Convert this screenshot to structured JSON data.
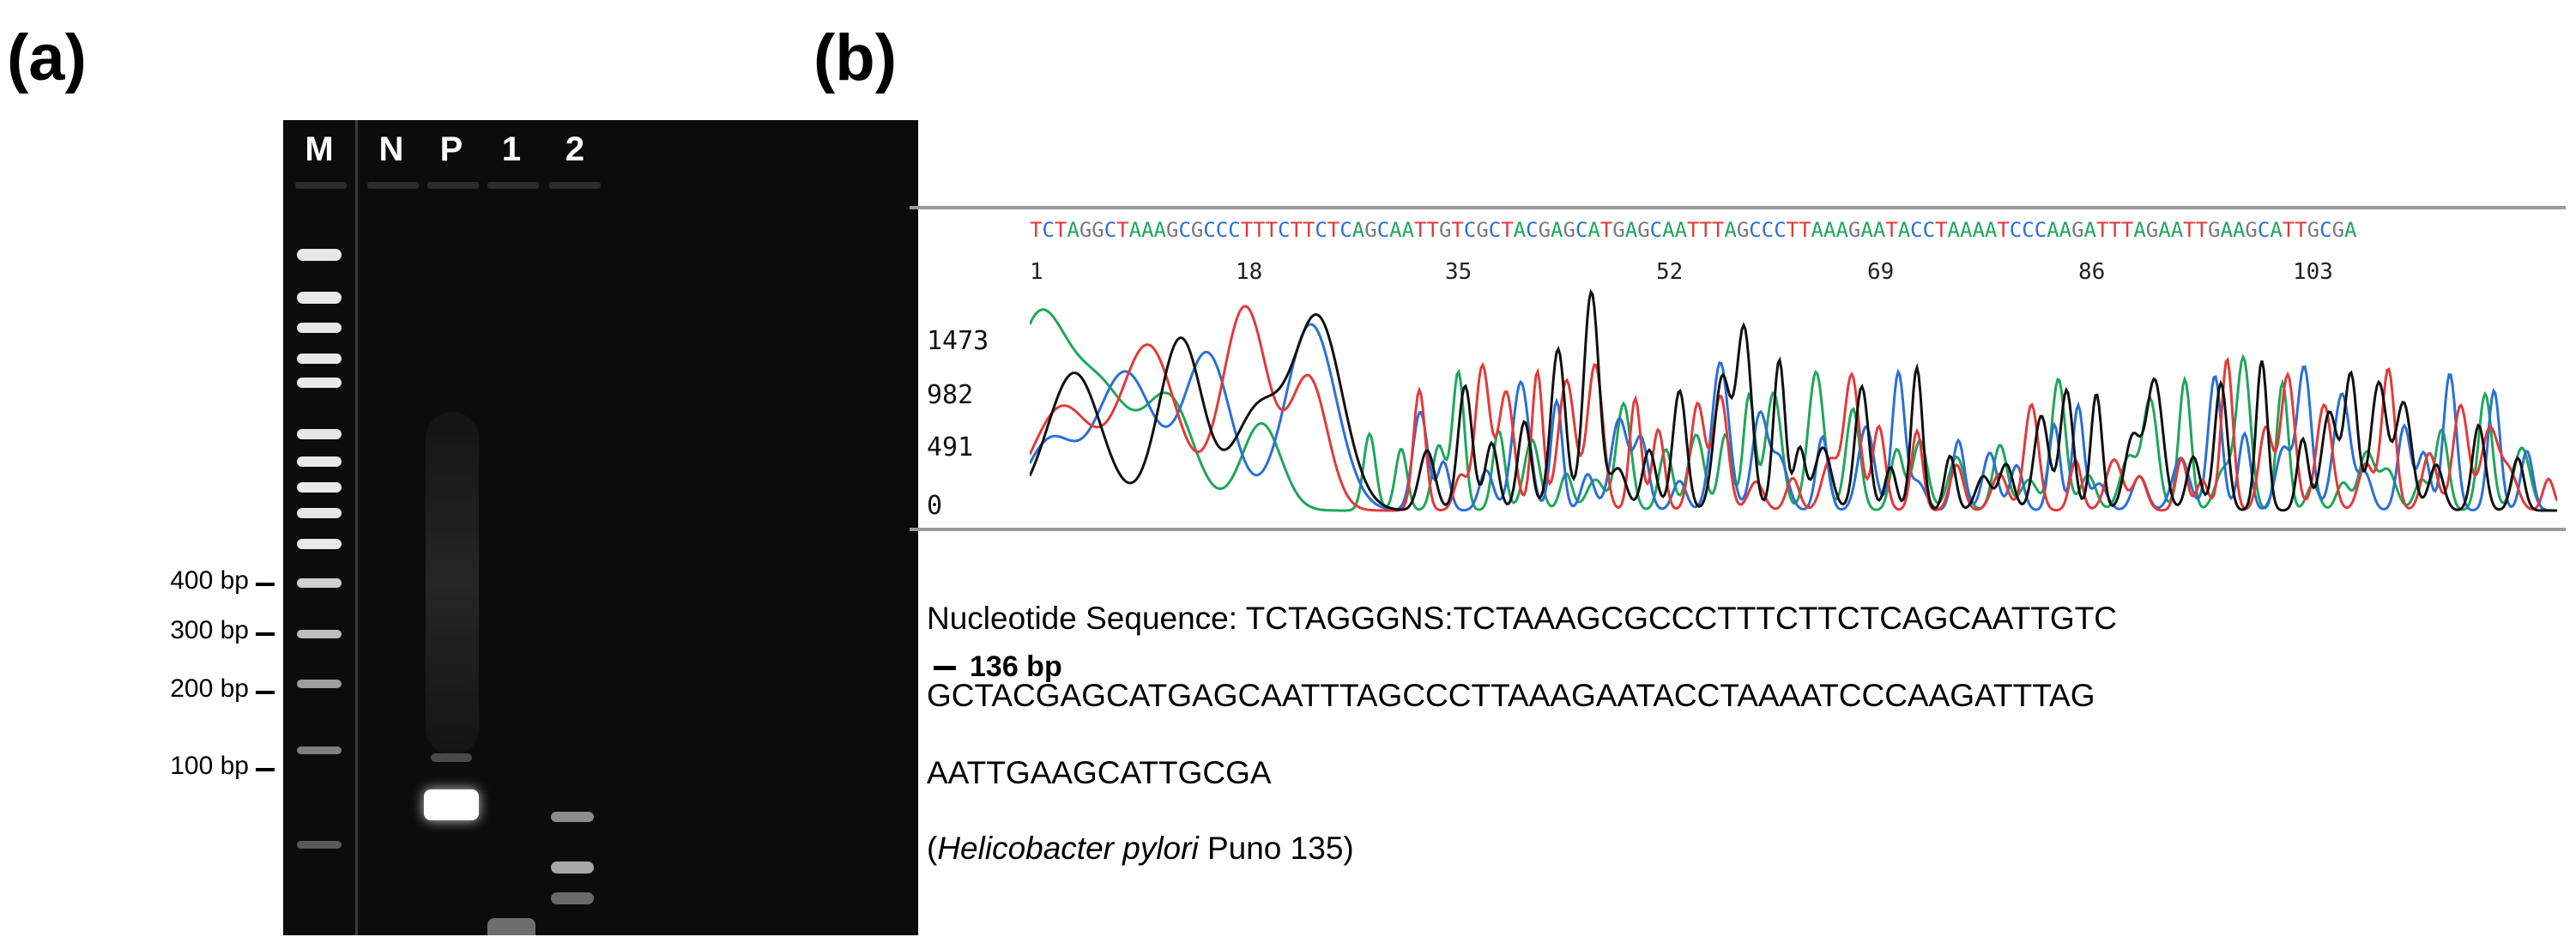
{
  "panel_a": {
    "label": "(a)",
    "lanes": [
      "M",
      "N",
      "P",
      "1",
      "2"
    ],
    "size_markers": [
      "400 bp",
      "300 bp",
      "200 bp",
      "100 bp"
    ],
    "product_label": "136 bp"
  },
  "panel_b": {
    "label": "(b)",
    "chromatogram": {
      "sequence_strip": "TCTAGGCTAAAGCGCCCTTTCTTCTCAGCAATTGTCGCTACGAGCATGAGCAATTTAGCCCTTAAAGAATACCTAAAATCCCAAGATTTAGAATTGAAGCATTGCGA",
      "positions": [
        "1",
        "18",
        "35",
        "52",
        "69",
        "86",
        "103"
      ],
      "y_ticks": [
        "1473",
        "982",
        "491",
        "0"
      ],
      "trace_colors": {
        "A": "#1fa65a",
        "C": "#2a6fd6",
        "G": "#111111",
        "T": "#e23a3a"
      }
    },
    "sequence_lines": [
      "Nucleotide Sequence: TCTAGGGNS:TCTAAAGCGCCCTTTCTTCTCAGCAATTGTC",
      "GCTACGAGCATGAGCAATTTAGCCCTTAAAGAATACCTAAAATCCCAAGATTTAG",
      "AATTGAAGCATTGCGA"
    ],
    "caption": {
      "open": "(",
      "species": "Helicobacter pylori",
      "strain": " Puno 135)"
    }
  }
}
